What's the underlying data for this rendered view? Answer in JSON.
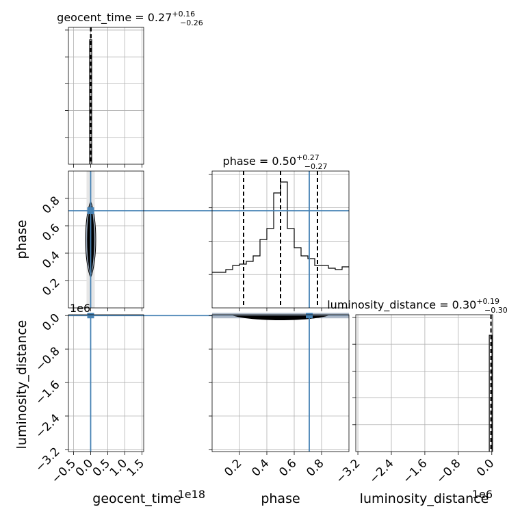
{
  "colors": {
    "truth": "#4682b4",
    "hist": "#000000",
    "grid": "#b0b0b0",
    "contour_fill": "#9aa9bb"
  },
  "chart_data": {
    "type": "corner",
    "parameters": [
      "geocent_time",
      "phase",
      "luminosity_distance"
    ],
    "titles": {
      "geocent_time": {
        "name": "geocent_time",
        "value": "0.27",
        "plus": "+0.16",
        "minus": "−0.26"
      },
      "phase": {
        "name": "phase",
        "value": "0.50",
        "plus": "+0.27",
        "minus": "−0.27"
      },
      "luminosity_distance": {
        "name": "luminosity_distance",
        "value": "0.30",
        "plus": "+0.19",
        "minus": "−0.30"
      }
    },
    "axis_labels": {
      "geocent_time": "geocent_time",
      "phase": "phase",
      "luminosity_distance": "luminosity_distance"
    },
    "offset_texts": {
      "geocent_time_x": "1e18",
      "luminosity_distance_y": "1e6",
      "luminosity_distance_x": "1e6"
    },
    "ranges": {
      "geocent_time": [
        -0.65,
        1.55
      ],
      "phase": [
        0.0,
        1.0
      ],
      "luminosity_distance": [
        -3.25,
        0.02
      ]
    },
    "ticks": {
      "geocent_time": {
        "values": [
          -0.5,
          0.0,
          0.5,
          1.0,
          1.5
        ],
        "labels": [
          "−0.5",
          "0.0",
          "0.5",
          "1.0",
          "1.5"
        ]
      },
      "phase": {
        "values": [
          0.2,
          0.4,
          0.6,
          0.8
        ],
        "labels": [
          "0.2",
          "0.4",
          "0.6",
          "0.8"
        ]
      },
      "luminosity_distance": {
        "values": [
          -3.2,
          -2.4,
          -1.6,
          -0.8,
          0.0
        ],
        "labels": [
          "−3.2",
          "−2.4",
          "−1.6",
          "−0.8",
          "0.0"
        ]
      }
    },
    "truths": {
      "geocent_time": 0.0,
      "phase": 0.71,
      "luminosity_distance": 0.0
    },
    "quantiles": {
      "geocent_time": [
        0.01,
        0.27,
        0.43
      ],
      "phase": [
        0.23,
        0.5,
        0.77
      ],
      "luminosity_distance": [
        0.0,
        0.3,
        0.49
      ]
    },
    "phase_hist": {
      "bin_edges": [
        0.0,
        0.05,
        0.1,
        0.15,
        0.2,
        0.25,
        0.3,
        0.35,
        0.4,
        0.45,
        0.5,
        0.55,
        0.6,
        0.65,
        0.7,
        0.75,
        0.8,
        0.85,
        0.9,
        0.95,
        1.0
      ],
      "counts": [
        0.26,
        0.26,
        0.28,
        0.31,
        0.32,
        0.34,
        0.38,
        0.5,
        0.58,
        0.84,
        0.92,
        0.58,
        0.44,
        0.38,
        0.36,
        0.31,
        0.31,
        0.29,
        0.28,
        0.3
      ],
      "ymax": 1.0
    },
    "geocent_hist": {
      "bin_edges": [
        -0.03,
        0.03
      ],
      "counts": [
        0.91
      ],
      "ymax": 1.0
    },
    "ld_hist": {
      "bin_edges": [
        -0.06,
        0.005
      ],
      "counts": [
        0.85
      ],
      "ymax": 1.0
    },
    "contours": {
      "geocent_time_vs_phase": {
        "x_center": 0.0,
        "y_center": 0.5,
        "x_halfwidth": 0.04,
        "y_halfwidth": 0.28
      },
      "geocent_time_vs_luminosity_distance": {
        "x_center": 0.0,
        "y_center": 0.0
      },
      "phase_vs_luminosity_distance": {
        "x_center": 0.5,
        "y_center": -0.02,
        "x_halfwidth": 0.35,
        "y_halfwidth": 0.03
      }
    },
    "grid": true
  }
}
